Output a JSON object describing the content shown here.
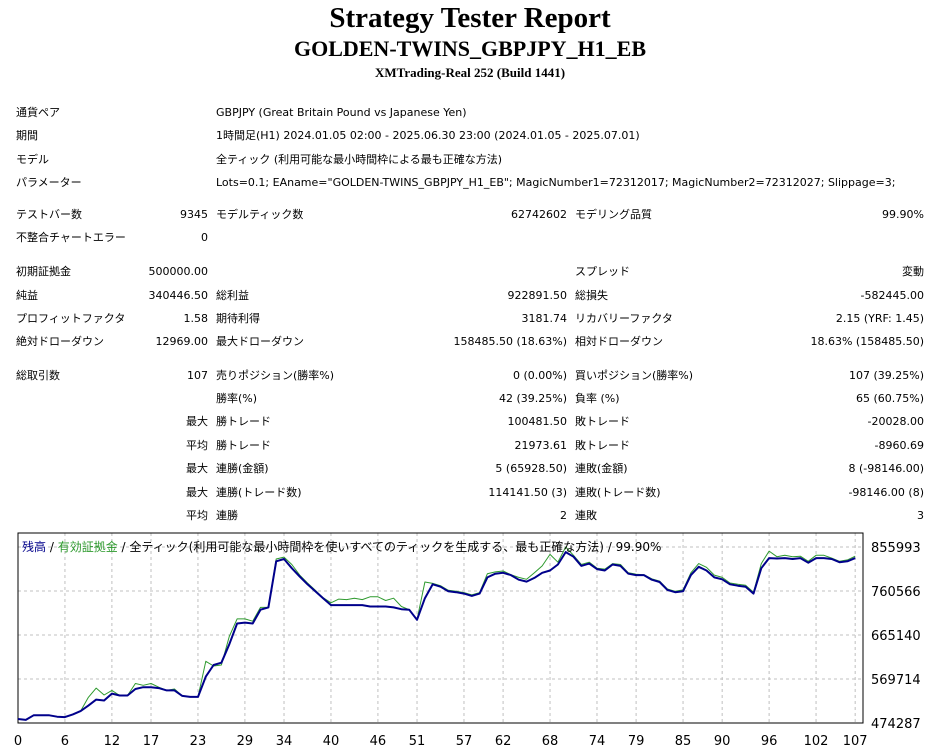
{
  "header": {
    "title": "Strategy Tester Report",
    "subtitle": "GOLDEN-TWINS_GBPJPY_H1_EB",
    "server": "XMTrading-Real 252 (Build 1441)"
  },
  "settings": {
    "symbol_label": "通貨ペア",
    "symbol_value": "GBPJPY (Great Britain Pound vs Japanese Yen)",
    "period_label": "期間",
    "period_value": "1時間足(H1) 2024.01.05 02:00 - 2025.06.30 23:00 (2024.01.05 - 2025.07.01)",
    "model_label": "モデル",
    "model_value": "全ティック (利用可能な最小時間枠による最も正確な方法)",
    "params_label": "パラメーター",
    "params_value": "Lots=0.1; EAname=\"GOLDEN-TWINS_GBPJPY_H1_EB\"; MagicNumber1=72312017; MagicNumber2=72312027; Slippage=3;"
  },
  "test": {
    "bars_label": "テストバー数",
    "bars_value": "9345",
    "ticks_label": "モデルティック数",
    "ticks_value": "62742602",
    "quality_label": "モデリング品質",
    "quality_value": "99.90%",
    "mismatch_label": "不整合チャートエラー",
    "mismatch_value": "0"
  },
  "results": {
    "deposit_label": "初期証拠金",
    "deposit_value": "500000.00",
    "spread_label": "スプレッド",
    "spread_value": "変動",
    "net_label": "純益",
    "net_value": "340446.50",
    "gross_profit_label": "総利益",
    "gross_profit_value": "922891.50",
    "gross_loss_label": "総損失",
    "gross_loss_value": "-582445.00",
    "pf_label": "プロフィットファクタ",
    "pf_value": "1.58",
    "expected_label": "期待利得",
    "expected_value": "3181.74",
    "recovery_label": "リカバリーファクタ",
    "recovery_value": "2.15 (YRF: 1.45)",
    "abs_dd_label": "絶対ドローダウン",
    "abs_dd_value": "12969.00",
    "max_dd_label": "最大ドローダウン",
    "max_dd_value": "158485.50 (18.63%)",
    "rel_dd_label": "相対ドローダウン",
    "rel_dd_value": "18.63% (158485.50)"
  },
  "trades": {
    "total_label": "総取引数",
    "total_value": "107",
    "short_label": "売りポジション(勝率%)",
    "short_value": "0 (0.00%)",
    "long_label": "買いポジション(勝率%)",
    "long_value": "107 (39.25%)",
    "win_pct_label": "勝率(%)",
    "win_pct_value": "42 (39.25%)",
    "loss_pct_label": "負率 (%)",
    "loss_pct_value": "65 (60.75%)",
    "max_label": "最大",
    "avg_label": "平均",
    "largest_win_label": "勝トレード",
    "largest_win_value": "100481.50",
    "largest_loss_label": "敗トレード",
    "largest_loss_value": "-20028.00",
    "avg_win_label": "勝トレード",
    "avg_win_value": "21973.61",
    "avg_loss_label": "敗トレード",
    "avg_loss_value": "-8960.69",
    "max_cons_wins_label": "連勝(金額)",
    "max_cons_wins_value": "5 (65928.50)",
    "max_cons_losses_label": "連敗(金額)",
    "max_cons_losses_value": "8 (-98146.00)",
    "max_cons_profit_label": "連勝(トレード数)",
    "max_cons_profit_value": "114141.50 (3)",
    "max_cons_loss_label": "連敗(トレード数)",
    "max_cons_loss_value": "-98146.00 (8)",
    "avg_cons_wins_label": "連勝",
    "avg_cons_wins_value": "2",
    "avg_cons_losses_label": "連敗",
    "avg_cons_losses_value": "3"
  },
  "chart_data": {
    "type": "line",
    "legend": {
      "balance": "残高",
      "sep1": " / ",
      "equity": "有効証拠金",
      "sep2": " / ",
      "rest": "全ティック(利用可能な最小時間枠を使いすべてのティックを生成する、最も正確な方法) / 99.90%"
    },
    "colors": {
      "balance": "#00008b",
      "equity": "#2e9a2e",
      "grid": "#c0c0c0",
      "frame": "#000000"
    },
    "x_ticks": [
      0,
      6,
      12,
      17,
      23,
      29,
      34,
      40,
      46,
      51,
      57,
      62,
      68,
      74,
      79,
      85,
      90,
      96,
      102,
      107
    ],
    "y_ticks": [
      474287,
      569714,
      665140,
      760566,
      855993
    ],
    "ylim": [
      474287,
      855993
    ],
    "xlim": [
      0,
      108
    ],
    "grid": true,
    "series": [
      {
        "name": "残高",
        "x": [
          0,
          1,
          2,
          3,
          4,
          5,
          6,
          7,
          8,
          9,
          10,
          11,
          12,
          13,
          14,
          15,
          16,
          17,
          18,
          19,
          20,
          21,
          22,
          23,
          24,
          25,
          26,
          27,
          28,
          29,
          30,
          31,
          32,
          33,
          34,
          35,
          36,
          37,
          38,
          39,
          40,
          41,
          42,
          43,
          44,
          45,
          46,
          47,
          48,
          49,
          50,
          51,
          52,
          53,
          54,
          55,
          56,
          57,
          58,
          59,
          60,
          61,
          62,
          63,
          64,
          65,
          66,
          67,
          68,
          69,
          70,
          71,
          72,
          73,
          74,
          75,
          76,
          77,
          78,
          79,
          80,
          81,
          82,
          83,
          84,
          85,
          86,
          87,
          88,
          89,
          90,
          91,
          92,
          93,
          94,
          95,
          96,
          97,
          98,
          99,
          100,
          101,
          102,
          103,
          104,
          105,
          106,
          107
        ],
        "values": [
          483000,
          481000,
          491000,
          491000,
          491000,
          488000,
          487000,
          493000,
          500000,
          512000,
          525000,
          523000,
          538000,
          534000,
          534000,
          548000,
          552000,
          552000,
          550000,
          545000,
          545000,
          533000,
          531000,
          531000,
          575000,
          600000,
          605000,
          645000,
          690000,
          692000,
          690000,
          720000,
          725000,
          825000,
          830000,
          810000,
          792000,
          775000,
          760000,
          745000,
          730000,
          730000,
          730000,
          730000,
          730000,
          727000,
          727000,
          727000,
          725000,
          721000,
          720000,
          698000,
          745000,
          775000,
          770000,
          760000,
          758000,
          755000,
          750000,
          755000,
          790000,
          798000,
          800000,
          795000,
          785000,
          781000,
          789000,
          800000,
          805000,
          818000,
          845000,
          835000,
          815000,
          820000,
          808000,
          805000,
          818000,
          815000,
          798000,
          795000,
          795000,
          785000,
          780000,
          763000,
          758000,
          760000,
          795000,
          813000,
          805000,
          790000,
          786000,
          775000,
          772000,
          770000,
          755000,
          810000,
          832000,
          831000,
          832000,
          830000,
          832000,
          822000,
          832000,
          832000,
          830000,
          823000,
          825000,
          832000
        ]
      },
      {
        "name": "有効証拠金",
        "x": [
          0,
          1,
          2,
          3,
          4,
          5,
          6,
          7,
          8,
          9,
          10,
          11,
          12,
          13,
          14,
          15,
          16,
          17,
          18,
          19,
          20,
          21,
          22,
          23,
          24,
          25,
          26,
          27,
          28,
          29,
          30,
          31,
          32,
          33,
          34,
          35,
          36,
          37,
          38,
          39,
          40,
          41,
          42,
          43,
          44,
          45,
          46,
          47,
          48,
          49,
          50,
          51,
          52,
          53,
          54,
          55,
          56,
          57,
          58,
          59,
          60,
          61,
          62,
          63,
          64,
          65,
          66,
          67,
          68,
          69,
          70,
          71,
          72,
          73,
          74,
          75,
          76,
          77,
          78,
          79,
          80,
          81,
          82,
          83,
          84,
          85,
          86,
          87,
          88,
          89,
          90,
          91,
          92,
          93,
          94,
          95,
          96,
          97,
          98,
          99,
          100,
          101,
          102,
          103,
          104,
          105,
          106,
          107
        ],
        "values": [
          483000,
          481000,
          491000,
          491000,
          491000,
          488000,
          487000,
          493000,
          500000,
          530000,
          550000,
          535000,
          545000,
          534000,
          534000,
          560000,
          556000,
          560000,
          552000,
          545000,
          548000,
          533000,
          531000,
          531000,
          608000,
          598000,
          600000,
          662000,
          700000,
          700000,
          695000,
          725000,
          725000,
          830000,
          834000,
          818000,
          795000,
          778000,
          762000,
          746000,
          735000,
          743000,
          742000,
          745000,
          742000,
          748000,
          748000,
          740000,
          745000,
          727000,
          720000,
          698000,
          780000,
          777000,
          772000,
          762000,
          760000,
          757000,
          752000,
          757000,
          798000,
          802000,
          804000,
          796000,
          790000,
          786000,
          800000,
          815000,
          840000,
          823000,
          856000,
          838000,
          818000,
          823000,
          810000,
          808000,
          820000,
          818000,
          800000,
          797000,
          796000,
          787000,
          782000,
          765000,
          760000,
          763000,
          800000,
          820000,
          812000,
          795000,
          790000,
          778000,
          775000,
          773000,
          758000,
          820000,
          847000,
          835000,
          838000,
          835000,
          836000,
          825000,
          838000,
          838000,
          832000,
          825000,
          828000,
          836000
        ]
      }
    ]
  }
}
